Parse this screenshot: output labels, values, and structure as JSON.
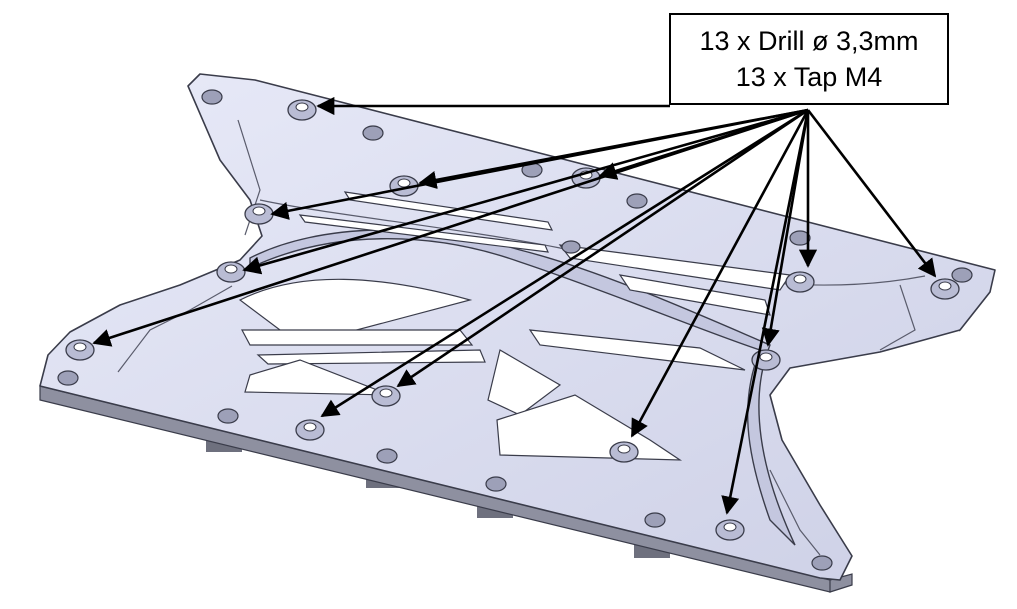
{
  "callout": {
    "line1": "13 x Drill ø 3,3mm",
    "line2": "13 x Tap M4"
  },
  "colors": {
    "plate": "#dcdff2",
    "plate_edge": "#3a3c4a",
    "side_face": "#8e90a0",
    "arrow": "#000000"
  },
  "tapped_hole_count": 13
}
